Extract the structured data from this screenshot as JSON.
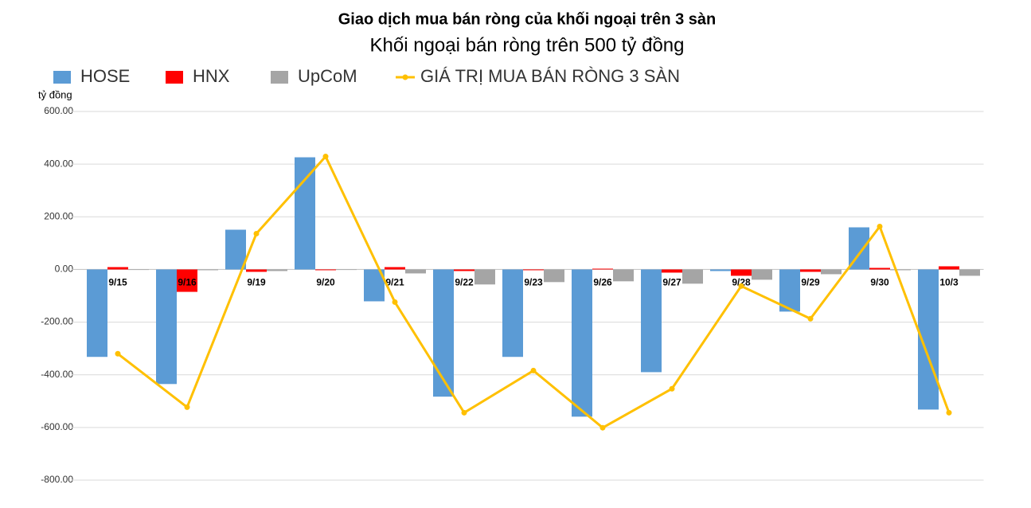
{
  "chart_data": {
    "type": "bar",
    "title": "Giao dịch mua bán ròng của khối ngoại trên 3 sàn",
    "subtitle": "Khối ngoại bán ròng trên 500 tỷ đồng",
    "y_label": "tỷ đồng",
    "categories": [
      "9/15",
      "9/16",
      "9/19",
      "9/20",
      "9/21",
      "9/22",
      "9/23",
      "9/26",
      "9/27",
      "9/28",
      "9/29",
      "9/30",
      "10/3"
    ],
    "series": [
      {
        "name": "HOSE",
        "type": "bar",
        "color": "#5b9bd5",
        "values": [
          -332,
          -435,
          151,
          426,
          -121,
          -483,
          -332,
          -559,
          -390,
          -6,
          -160,
          160,
          -532
        ]
      },
      {
        "name": "HNX",
        "type": "bar",
        "color": "#ff0000",
        "values": [
          9,
          -85,
          -9,
          -3,
          9,
          -6,
          -3,
          3,
          -12,
          -24,
          -9,
          6,
          12
        ]
      },
      {
        "name": "UpCoM",
        "type": "bar",
        "color": "#a5a5a5",
        "values": [
          -2,
          -3,
          -6,
          -2,
          -15,
          -57,
          -48,
          -45,
          -54,
          -39,
          -18,
          -3,
          -24
        ]
      },
      {
        "name": "GIÁ TRỊ MUA BÁN RÒNG 3 SÀN",
        "type": "line",
        "color": "#ffc000",
        "values": [
          -320,
          -523,
          136,
          429,
          -124,
          -544,
          -384,
          -601,
          -453,
          -63,
          -187,
          163,
          -544
        ]
      }
    ],
    "ylim": [
      -800,
      600
    ],
    "yticks": [
      {
        "value": -800,
        "label": "-800.00"
      },
      {
        "value": -600,
        "label": "-600.00"
      },
      {
        "value": -400,
        "label": "-400.00"
      },
      {
        "value": -200,
        "label": "-200.00"
      },
      {
        "value": 0,
        "label": "0.00"
      },
      {
        "value": 200,
        "label": "200.00"
      },
      {
        "value": 400,
        "label": "400.00"
      },
      {
        "value": 600,
        "label": "600.00"
      }
    ],
    "grid": true
  }
}
